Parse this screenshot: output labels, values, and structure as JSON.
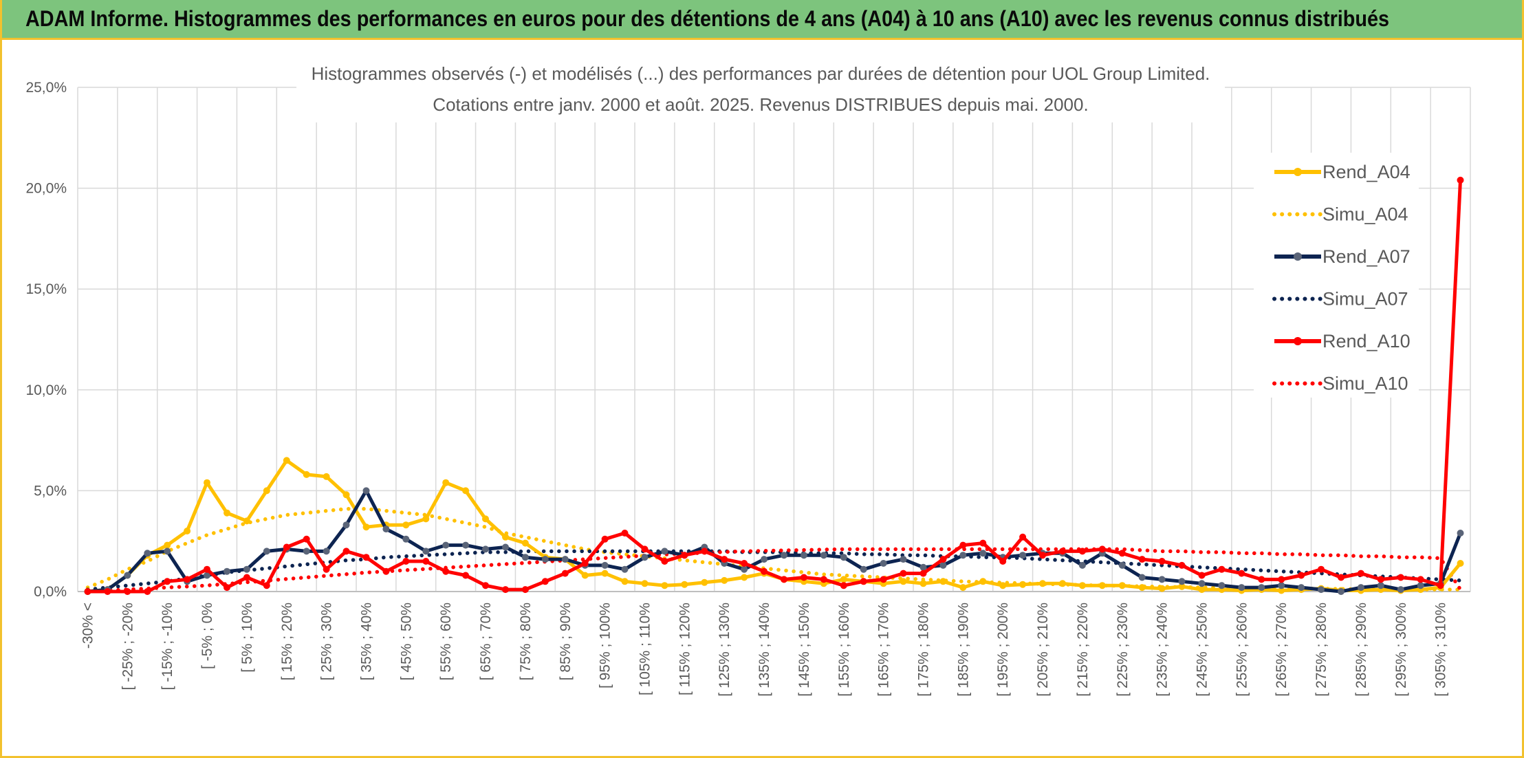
{
  "banner": {
    "title": "ADAM Informe. Histogrammes des performances en euros pour des détentions de 4 ans (A04) à 10 ans (A10) avec les revenus connus distribués"
  },
  "colors": {
    "banner_bg": "#7dc47d",
    "border": "#f2c12e",
    "A04": "#ffc000",
    "A07": "#0d2451",
    "A07_marker": "#5a6478",
    "A10": "#ff0000",
    "grid": "#d9d9d9",
    "text": "#595959"
  },
  "chart_data": {
    "type": "line",
    "title": "Histogrammes observés (-) et modélisés (...) des performances par durées de détention pour UOL Group Limited.",
    "subtitle": "Cotations entre janv. 2000 et août. 2025. Revenus DISTRIBUES depuis mai. 2000.",
    "xlabel": "",
    "ylabel": "",
    "ylim": [
      0,
      25
    ],
    "y_ticks": [
      "0,0%",
      "5,0%",
      "10,0%",
      "15,0%",
      "20,0%",
      "25,0%"
    ],
    "grid": true,
    "legend_position": "right",
    "x_tick_labels": [
      "-30% <",
      "[ -25% ; -20%",
      "[ -15% ; -10%",
      "[ -5% ; 0%",
      "[ 5% ; 10%",
      "[ 15% ; 20%",
      "[ 25% ; 30%",
      "[ 35% ; 40%",
      "[ 45% ; 50%",
      "[ 55% ; 60%",
      "[ 65% ; 70%",
      "[ 75% ; 80%",
      "[ 85% ; 90%",
      "[ 95% ; 100%",
      "[ 105% ; 110%",
      "[ 115% ; 120%",
      "[ 125% ; 130%",
      "[ 135% ; 140%",
      "[ 145% ; 150%",
      "[ 155% ; 160%",
      "[ 165% ; 170%",
      "[ 175% ; 180%",
      "[ 185% ; 190%",
      "[ 195% ; 200%",
      "[ 205% ; 210%",
      "[ 215% ; 220%",
      "[ 225% ; 230%",
      "[ 235% ; 240%",
      "[ 245% ; 250%",
      "[ 255% ; 260%",
      "[ 265% ; 270%",
      "[ 275% ; 280%",
      "[ 285% ; 290%",
      "[ 295% ; 300%",
      "[ 305% ; 310%"
    ],
    "category_count": 70,
    "series": [
      {
        "name": "Rend_A04",
        "style": "solid",
        "color": "#ffc000",
        "values": [
          0,
          0.1,
          0.8,
          1.8,
          2.3,
          3.0,
          5.4,
          3.9,
          3.5,
          5.0,
          6.5,
          5.8,
          5.7,
          4.8,
          3.2,
          3.3,
          3.3,
          3.6,
          5.4,
          5.0,
          3.6,
          2.7,
          2.4,
          1.7,
          1.6,
          0.8,
          0.9,
          0.5,
          0.4,
          0.3,
          0.35,
          0.45,
          0.55,
          0.7,
          0.9,
          0.6,
          0.5,
          0.4,
          0.6,
          0.5,
          0.4,
          0.5,
          0.4,
          0.5,
          0.2,
          0.5,
          0.3,
          0.35,
          0.4,
          0.4,
          0.3,
          0.3,
          0.3,
          0.2,
          0.15,
          0.25,
          0.1,
          0.1,
          0.05,
          0.1,
          0.05,
          0.1,
          0.15,
          0.05,
          0.05,
          0.1,
          0.05,
          0.1,
          0.2,
          1.4
        ]
      },
      {
        "name": "Simu_A04",
        "style": "dotted",
        "color": "#ffc000",
        "values": [
          0.2,
          0.6,
          1.1,
          1.5,
          2.0,
          2.4,
          2.8,
          3.1,
          3.4,
          3.6,
          3.8,
          3.9,
          4.0,
          4.1,
          4.1,
          4.0,
          3.9,
          3.8,
          3.6,
          3.4,
          3.2,
          2.9,
          2.7,
          2.5,
          2.3,
          2.1,
          1.95,
          1.85,
          1.75,
          1.65,
          1.55,
          1.45,
          1.35,
          1.25,
          1.15,
          1.05,
          0.95,
          0.85,
          0.8,
          0.75,
          0.7,
          0.65,
          0.6,
          0.55,
          0.5,
          0.47,
          0.44,
          0.41,
          0.38,
          0.35,
          0.32,
          0.3,
          0.28,
          0.26,
          0.24,
          0.22,
          0.2,
          0.19,
          0.18,
          0.17,
          0.16,
          0.15,
          0.14,
          0.13,
          0.12,
          0.11,
          0.1,
          0.1,
          0.1,
          0.1
        ]
      },
      {
        "name": "Rend_A07",
        "style": "solid",
        "color": "#0d2451",
        "values": [
          0,
          0.1,
          0.8,
          1.9,
          2.0,
          0.5,
          0.8,
          1.0,
          1.1,
          2.0,
          2.1,
          2.0,
          2.0,
          3.3,
          5.0,
          3.1,
          2.6,
          2.0,
          2.3,
          2.3,
          2.1,
          2.2,
          1.7,
          1.6,
          1.6,
          1.3,
          1.3,
          1.1,
          1.7,
          2.0,
          1.8,
          2.2,
          1.4,
          1.1,
          1.6,
          1.8,
          1.8,
          1.8,
          1.7,
          1.1,
          1.4,
          1.6,
          1.2,
          1.3,
          1.8,
          1.9,
          1.7,
          1.8,
          1.9,
          1.9,
          1.3,
          1.9,
          1.3,
          0.7,
          0.6,
          0.5,
          0.4,
          0.3,
          0.2,
          0.2,
          0.3,
          0.2,
          0.1,
          0.0,
          0.2,
          0.3,
          0.1,
          0.3,
          0.4,
          2.9
        ]
      },
      {
        "name": "Simu_A07",
        "style": "dotted",
        "color": "#0d2451",
        "values": [
          0.1,
          0.2,
          0.3,
          0.4,
          0.5,
          0.65,
          0.8,
          0.95,
          1.05,
          1.15,
          1.25,
          1.35,
          1.45,
          1.55,
          1.6,
          1.7,
          1.75,
          1.8,
          1.85,
          1.9,
          1.95,
          1.95,
          2.0,
          2.0,
          2.0,
          2.0,
          2.0,
          2.0,
          2.0,
          2.0,
          2.0,
          2.0,
          2.0,
          1.95,
          1.95,
          1.95,
          1.9,
          1.9,
          1.9,
          1.85,
          1.85,
          1.8,
          1.8,
          1.75,
          1.75,
          1.7,
          1.7,
          1.65,
          1.6,
          1.55,
          1.5,
          1.45,
          1.4,
          1.35,
          1.3,
          1.25,
          1.2,
          1.15,
          1.1,
          1.05,
          1.0,
          0.95,
          0.9,
          0.85,
          0.8,
          0.75,
          0.7,
          0.65,
          0.6,
          0.55
        ]
      },
      {
        "name": "Rend_A10",
        "style": "solid",
        "color": "#ff0000",
        "values": [
          0,
          0,
          0,
          0,
          0.5,
          0.6,
          1.1,
          0.2,
          0.7,
          0.3,
          2.2,
          2.6,
          1.1,
          2.0,
          1.7,
          1.0,
          1.5,
          1.5,
          1.0,
          0.8,
          0.3,
          0.1,
          0.1,
          0.5,
          0.9,
          1.4,
          2.6,
          2.9,
          2.1,
          1.5,
          1.8,
          2.0,
          1.6,
          1.4,
          1.0,
          0.6,
          0.7,
          0.6,
          0.3,
          0.5,
          0.6,
          0.9,
          0.9,
          1.6,
          2.3,
          2.4,
          1.5,
          2.7,
          1.8,
          2.0,
          2.0,
          2.1,
          1.9,
          1.6,
          1.5,
          1.3,
          0.8,
          1.1,
          0.9,
          0.6,
          0.6,
          0.8,
          1.1,
          0.7,
          0.9,
          0.6,
          0.7,
          0.6,
          0.3,
          20.4
        ]
      },
      {
        "name": "Simu_A10",
        "style": "dotted",
        "color": "#ff0000",
        "values": [
          0.0,
          0.05,
          0.1,
          0.15,
          0.2,
          0.25,
          0.3,
          0.38,
          0.46,
          0.54,
          0.62,
          0.7,
          0.78,
          0.86,
          0.94,
          1.0,
          1.06,
          1.12,
          1.18,
          1.24,
          1.3,
          1.36,
          1.42,
          1.48,
          1.54,
          1.6,
          1.66,
          1.72,
          1.78,
          1.84,
          1.88,
          1.92,
          1.96,
          2.0,
          2.02,
          2.04,
          2.06,
          2.08,
          2.1,
          2.1,
          2.1,
          2.1,
          2.1,
          2.1,
          2.1,
          2.1,
          2.1,
          2.1,
          2.1,
          2.1,
          2.1,
          2.1,
          2.1,
          2.05,
          2.0,
          2.0,
          1.95,
          1.95,
          1.9,
          1.9,
          1.85,
          1.85,
          1.8,
          1.8,
          1.75,
          1.75,
          1.7,
          1.7,
          1.65,
          0.1
        ]
      }
    ]
  }
}
